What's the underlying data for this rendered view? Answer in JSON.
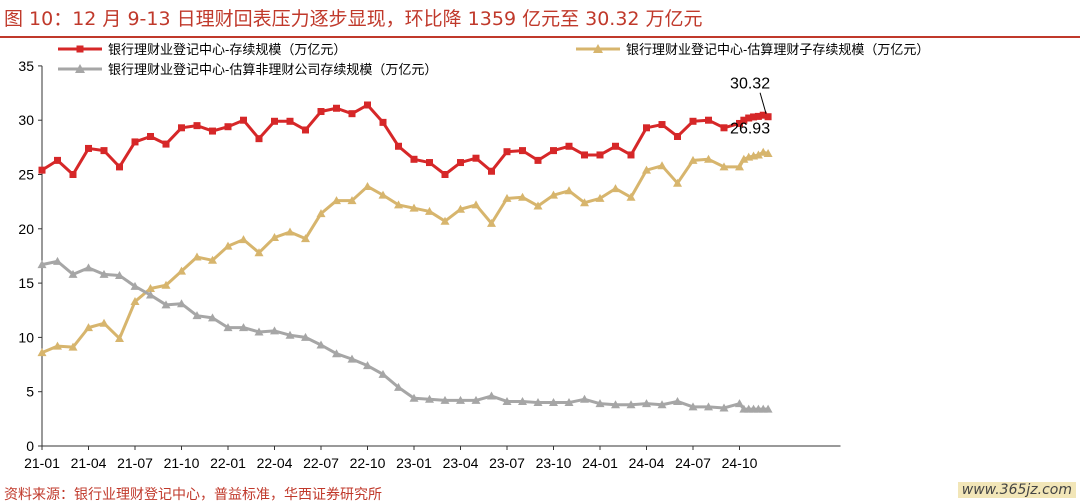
{
  "title": "图 10：12 月 9-13 日理财回表压力逐步显现，环比降 1359 亿元至 30.32 万亿元",
  "source": "资料来源：银行业理财登记中心，普益标准，华西证券研究所",
  "watermark": "www.365jz.com",
  "chart_data": {
    "type": "line",
    "ylim": [
      0,
      35
    ],
    "yticks": [
      0,
      5,
      10,
      15,
      20,
      25,
      30,
      35
    ],
    "x_tick_labels": [
      "21-01",
      "21-04",
      "21-07",
      "21-10",
      "22-01",
      "22-04",
      "22-07",
      "22-10",
      "23-01",
      "23-04",
      "23-07",
      "23-10",
      "24-01",
      "24-04",
      "24-07",
      "24-10"
    ],
    "x_tick_index": [
      0,
      3,
      6,
      9,
      12,
      15,
      18,
      21,
      24,
      27,
      30,
      33,
      36,
      39,
      42,
      45
    ],
    "weekly_start_index": 46,
    "weekly_points": 6,
    "legend_position": "top",
    "series": [
      {
        "name": "银行理财业登记中心-存续规模（万亿元）",
        "color": "#d62728",
        "marker": "square",
        "monthly": [
          25.4,
          26.3,
          25.0,
          27.4,
          27.2,
          25.7,
          28.0,
          28.5,
          27.8,
          29.3,
          29.5,
          29.0,
          29.4,
          30.0,
          28.3,
          29.9,
          29.9,
          29.1,
          30.8,
          31.1,
          30.6,
          31.4,
          29.8,
          27.6,
          26.4,
          26.1,
          25.0,
          26.1,
          26.5,
          25.3,
          27.1,
          27.2,
          26.3,
          27.2,
          27.6,
          26.8,
          26.8,
          27.6,
          26.8,
          29.3,
          29.6,
          28.5,
          29.9,
          30.0,
          29.3,
          29.7
        ],
        "weekly": [
          30.0,
          30.2,
          30.3,
          30.35,
          30.46,
          30.32
        ],
        "end_label": "30.32"
      },
      {
        "name": "银行理财业登记中心-估算理财子存续规模（万亿元）",
        "color": "#d7b56d",
        "marker": "triangle",
        "monthly": [
          8.6,
          9.2,
          9.1,
          10.9,
          11.3,
          9.9,
          13.3,
          14.5,
          14.8,
          16.1,
          17.4,
          17.1,
          18.4,
          19.0,
          17.8,
          19.2,
          19.7,
          19.1,
          21.4,
          22.6,
          22.6,
          23.9,
          23.1,
          22.2,
          21.9,
          21.6,
          20.7,
          21.8,
          22.2,
          20.5,
          22.8,
          22.9,
          22.1,
          23.1,
          23.5,
          22.4,
          22.8,
          23.7,
          22.9,
          25.4,
          25.8,
          24.2,
          26.3,
          26.4,
          25.7,
          25.7
        ],
        "weekly": [
          26.4,
          26.6,
          26.7,
          26.8,
          27.05,
          26.93
        ],
        "end_label": "26.93"
      },
      {
        "name": "银行理财业登记中心-估算非理财公司存续规模（万亿元）",
        "color": "#a6a6a6",
        "marker": "triangle",
        "monthly": [
          16.7,
          17.0,
          15.8,
          16.4,
          15.8,
          15.7,
          14.7,
          13.9,
          13.0,
          13.1,
          12.0,
          11.8,
          10.9,
          10.9,
          10.5,
          10.6,
          10.2,
          10.0,
          9.3,
          8.5,
          8.0,
          7.4,
          6.6,
          5.4,
          4.4,
          4.3,
          4.2,
          4.2,
          4.2,
          4.6,
          4.1,
          4.1,
          4.0,
          4.0,
          4.0,
          4.3,
          3.9,
          3.8,
          3.8,
          3.9,
          3.8,
          4.1,
          3.6,
          3.6,
          3.5,
          3.9
        ],
        "weekly": [
          3.4,
          3.4,
          3.4,
          3.4,
          3.4,
          3.4
        ]
      }
    ]
  }
}
